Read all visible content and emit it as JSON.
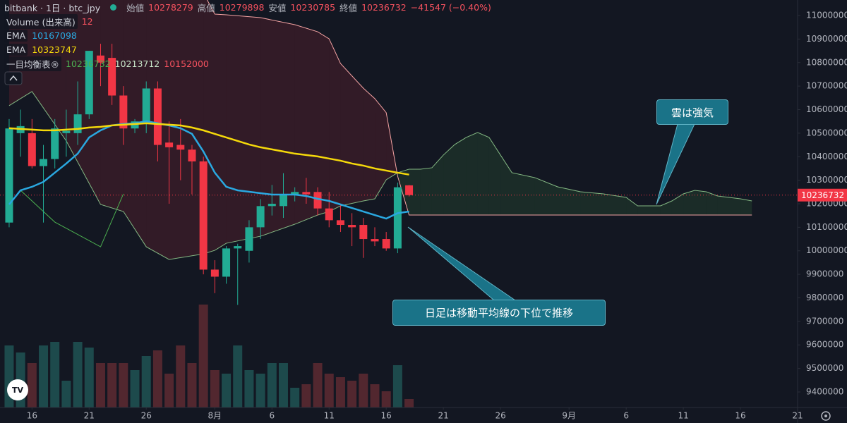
{
  "header": {
    "symbol": "bitbank · 1日 · btc_jpy",
    "open_label": "始値",
    "high_label": "高値",
    "low_label": "安値",
    "close_label": "終値",
    "change": "−41547 (−0.40%)"
  },
  "chart_data": {
    "type": "candlestick",
    "x": [
      0,
      1,
      2,
      3,
      4,
      5,
      6,
      7,
      8,
      9,
      10,
      11,
      12,
      13,
      14,
      15,
      16,
      17,
      18,
      19,
      20,
      21,
      22,
      23,
      24,
      25,
      26,
      27,
      28,
      29,
      30,
      31,
      32,
      33,
      34,
      35
    ],
    "open": [
      10120000,
      10500000,
      10500000,
      10360000,
      10390000,
      10500000,
      10500000,
      10580000,
      10830000,
      10820000,
      10660000,
      10520000,
      10540000,
      10690000,
      10460000,
      10450000,
      10430000,
      10380000,
      9920000,
      9890000,
      10010000,
      10000000,
      10100000,
      10190000,
      10190000,
      10240000,
      10250000,
      10250000,
      10180000,
      10130000,
      10110000,
      10110000,
      10050000,
      10050000,
      10010000,
      10278279
    ],
    "high": [
      10560000,
      10600000,
      10560000,
      10450000,
      10560000,
      10600000,
      10720000,
      10850000,
      10880000,
      10880000,
      10700000,
      10560000,
      10720000,
      10720000,
      10550000,
      10560000,
      10450000,
      10400000,
      9960000,
      10020000,
      10030000,
      10130000,
      10220000,
      10280000,
      10330000,
      10270000,
      10310000,
      10270000,
      10250000,
      10200000,
      10160000,
      10140000,
      10100000,
      10080000,
      10290000,
      10279898
    ],
    "low": [
      10100000,
      10400000,
      10350000,
      10120000,
      10350000,
      10400000,
      10450000,
      10560000,
      10700000,
      10620000,
      10450000,
      10500000,
      10500000,
      10380000,
      10200000,
      10300000,
      10240000,
      9900000,
      9820000,
      9860000,
      9770000,
      9950000,
      10050000,
      10150000,
      10140000,
      10210000,
      10200000,
      10150000,
      10100000,
      10080000,
      10020000,
      9970000,
      10020000,
      10000000,
      9990000,
      10230785
    ],
    "close": [
      10520000,
      10530000,
      10360000,
      10390000,
      10520000,
      10510000,
      10580000,
      10850000,
      10800000,
      10660000,
      10520000,
      10550000,
      10690000,
      10450000,
      10440000,
      10430000,
      10380000,
      9920000,
      9890000,
      10010000,
      10020000,
      10100000,
      10190000,
      10200000,
      10240000,
      10250000,
      10240000,
      10180000,
      10130000,
      10110000,
      10100000,
      10050000,
      10040000,
      10010000,
      10270000,
      10236732
    ],
    "up_color": "#22ab94",
    "down_color": "#f23645",
    "volume_name": "Volume (出来高)",
    "volume": [
      88,
      78,
      63,
      88,
      93,
      38,
      93,
      85,
      63,
      63,
      63,
      53,
      73,
      81,
      48,
      88,
      63,
      146,
      53,
      48,
      88,
      53,
      48,
      63,
      63,
      28,
      33,
      63,
      48,
      43,
      38,
      48,
      33,
      23,
      60,
      12
    ],
    "volume_ylim": [
      0,
      578
    ],
    "volume_up_color": "#1d4a4c",
    "volume_down_color": "#52272f",
    "xlim": [
      -0.8,
      69
    ],
    "xticks": [
      {
        "value": 2,
        "label": "16"
      },
      {
        "value": 7,
        "label": "21"
      },
      {
        "value": 12,
        "label": "26"
      },
      {
        "value": 18,
        "label": "8月"
      },
      {
        "value": 23,
        "label": "6"
      },
      {
        "value": 28,
        "label": "11"
      },
      {
        "value": 33,
        "label": "16"
      },
      {
        "value": 38,
        "label": "21"
      },
      {
        "value": 43,
        "label": "26"
      },
      {
        "value": 49,
        "label": "9月"
      },
      {
        "value": 54,
        "label": "6"
      },
      {
        "value": 59,
        "label": "11"
      },
      {
        "value": 64,
        "label": "16"
      },
      {
        "value": 69,
        "label": "21"
      }
    ],
    "ylim": [
      9334000,
      11066000
    ],
    "yticks": [
      11000000,
      10900000,
      10800000,
      10700000,
      10600000,
      10500000,
      10400000,
      10300000,
      10200000,
      10100000,
      10000000,
      9900000,
      9800000,
      9700000,
      9600000,
      9500000,
      9400000
    ],
    "grid": false,
    "series": [
      {
        "name": "EMA",
        "color": "#2aa8e0",
        "values": [
          10197000,
          10257000,
          10272000,
          10293000,
          10332000,
          10371000,
          10413000,
          10482000,
          10512000,
          10533000,
          10539000,
          10542000,
          10551000,
          10542000,
          10533000,
          10521000,
          10497000,
          10422000,
          10332000,
          10272000,
          10257000,
          10251000,
          10245000,
          10239000,
          10239000,
          10239000,
          10233000,
          10221000,
          10212000,
          10197000,
          10182000,
          10167000,
          10152000,
          10137000,
          10160000,
          10167098
        ]
      },
      {
        "name": "EMA",
        "color": "#f5d90a",
        "values": [
          10521000,
          10518000,
          10515000,
          10512000,
          10512000,
          10515000,
          10518000,
          10524000,
          10527000,
          10533000,
          10536000,
          10539000,
          10542000,
          10539000,
          10536000,
          10533000,
          10524000,
          10512000,
          10497000,
          10482000,
          10467000,
          10452000,
          10440000,
          10431000,
          10422000,
          10413000,
          10407000,
          10401000,
          10392000,
          10383000,
          10371000,
          10362000,
          10350000,
          10341000,
          10332000,
          10323747
        ]
      }
    ],
    "ichimoku": {
      "name": "一目均衡表®",
      "legend_values": [
        10236732,
        10213712,
        10152000
      ],
      "legend_colors": [
        "#4caf50",
        "#c8e6c9",
        "#f7525f"
      ],
      "x": [
        0,
        2,
        5,
        8,
        10,
        12,
        14,
        17,
        18,
        19,
        22,
        25,
        27,
        28,
        29,
        31,
        32,
        33,
        34,
        35,
        36,
        37,
        38,
        39,
        40,
        41,
        42,
        43,
        44,
        46,
        48,
        50,
        52,
        54,
        55,
        57,
        58,
        59,
        60,
        61,
        62,
        64,
        65
      ],
      "span_a": [
        10617000,
        10677000,
        10467000,
        10197000,
        10167000,
        10017000,
        9963000,
        9987000,
        10002000,
        10032000,
        10062000,
        10113000,
        10152000,
        10167000,
        10191000,
        10212000,
        10221000,
        10302000,
        10332000,
        10347000,
        10347000,
        10353000,
        10407000,
        10452000,
        10482000,
        10503000,
        10482000,
        10407000,
        10332000,
        10311000,
        10272000,
        10251000,
        10242000,
        10227000,
        10191000,
        10191000,
        10212000,
        10242000,
        10257000,
        10251000,
        10233000,
        10221000,
        10212000
      ],
      "span_b": [
        11156000,
        11150000,
        11141000,
        11132000,
        11126000,
        11120000,
        11111000,
        11096000,
        11006000,
        11003000,
        10991000,
        10961000,
        10931000,
        10901000,
        10796000,
        10691000,
        10647000,
        10587000,
        10317000,
        10152000,
        10152000,
        10152000,
        10152000,
        10152000,
        10152000,
        10152000,
        10152000,
        10152000,
        10152000,
        10152000,
        10152000,
        10152000,
        10152000,
        10152000,
        10152000,
        10152000,
        10152000,
        10152000,
        10152000,
        10152000,
        10152000,
        10152000,
        10152000
      ],
      "span_a_color": "#84b883",
      "span_b_color": "#f4a3a3",
      "bull_fill": "rgba(76,175,80,0.14)",
      "bear_fill": "rgba(242,54,69,0.14)",
      "lagging": {
        "x": [
          1,
          4,
          8,
          10
        ],
        "values": [
          10257000,
          10122000,
          10017000,
          10242000
        ],
        "color": "#4caf50"
      }
    },
    "annotations": [
      "雲は強気",
      "日足は移動平均線の下位で推移"
    ]
  }
}
